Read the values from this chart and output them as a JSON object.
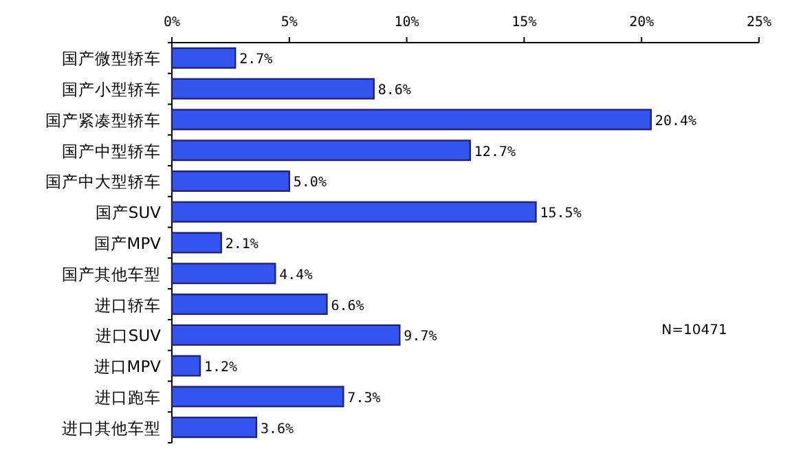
{
  "chart_data": {
    "type": "bar",
    "orientation": "horizontal",
    "categories": [
      "国产微型轿车",
      "国产小型轿车",
      "国产紧凑型轿车",
      "国产中型轿车",
      "国产中大型轿车",
      "国产SUV",
      "国产MPV",
      "国产其他车型",
      "进口轿车",
      "进口SUV",
      "进口MPV",
      "进口跑车",
      "进口其他车型"
    ],
    "values": [
      2.7,
      8.6,
      20.4,
      12.7,
      5.0,
      15.5,
      2.1,
      4.4,
      6.6,
      9.7,
      1.2,
      7.3,
      3.6
    ],
    "value_labels": [
      "2.7%",
      "8.6%",
      "20.4%",
      "12.7%",
      "5.0%",
      "15.5%",
      "2.1%",
      "4.4%",
      "6.6%",
      "9.7%",
      "1.2%",
      "7.3%",
      "3.6%"
    ],
    "color": "#3355ee",
    "xlim": [
      0,
      25
    ],
    "xticks": [
      {
        "value": 0,
        "label": "0%"
      },
      {
        "value": 5,
        "label": "5%"
      },
      {
        "value": 10,
        "label": "10%"
      },
      {
        "value": 15,
        "label": "15%"
      },
      {
        "value": 20,
        "label": "20%"
      },
      {
        "value": 25,
        "label": "25%"
      }
    ],
    "grid": false,
    "annotations": [
      "N=10471"
    ]
  }
}
